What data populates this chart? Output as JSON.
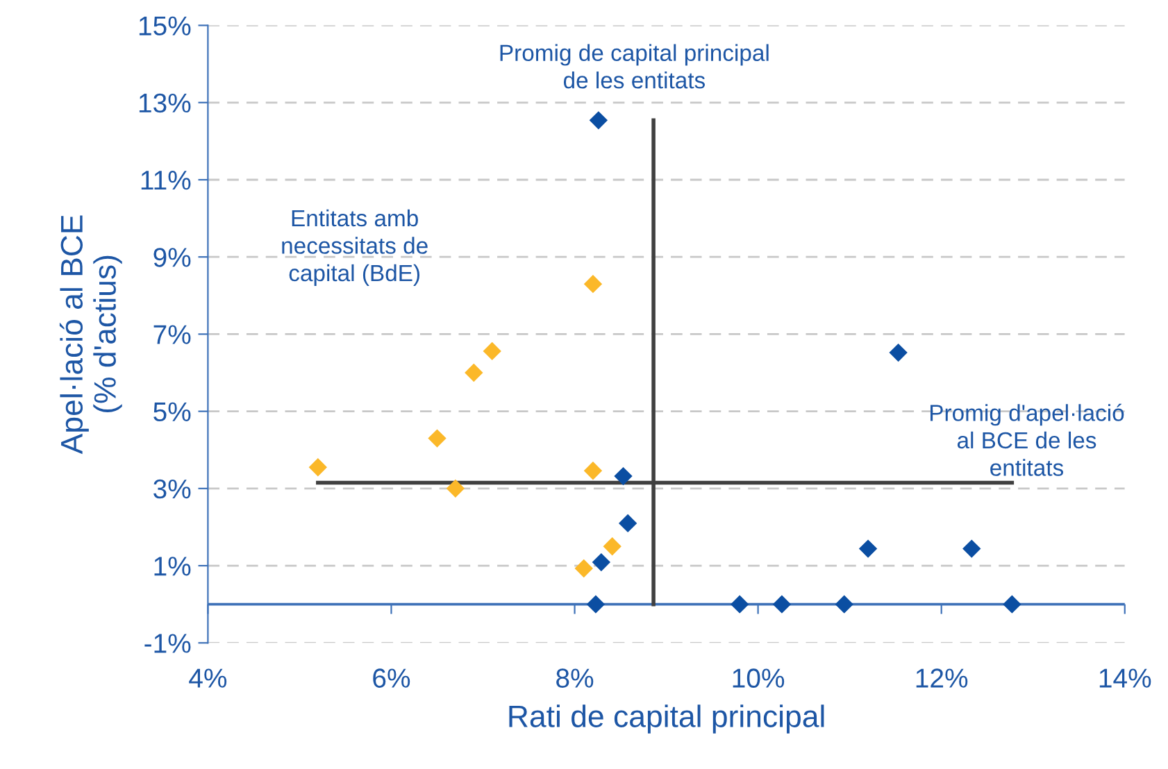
{
  "chart_data": {
    "type": "scatter",
    "xlabel": "Rati de capital principal",
    "ylabel": "Apel·lació al BCE\n(% d'actius)",
    "xlim": [
      4,
      14
    ],
    "xticks": [
      {
        "value": 4,
        "label": "4%"
      },
      {
        "value": 6,
        "label": "6%"
      },
      {
        "value": 8,
        "label": "8%"
      },
      {
        "value": 10,
        "label": "10%"
      },
      {
        "value": 12,
        "label": "12%"
      },
      {
        "value": 14,
        "label": "14%"
      }
    ],
    "ylim": [
      -1,
      15
    ],
    "yticks": [
      {
        "value": -1,
        "label": "-1%"
      },
      {
        "value": 1,
        "label": "1%"
      },
      {
        "value": 3,
        "label": "3%"
      },
      {
        "value": 5,
        "label": "5%"
      },
      {
        "value": 7,
        "label": "7%"
      },
      {
        "value": 9,
        "label": "9%"
      },
      {
        "value": 11,
        "label": "11%"
      },
      {
        "value": 13,
        "label": "13%"
      },
      {
        "value": 15,
        "label": "15%"
      }
    ],
    "grid": "y",
    "series": [
      {
        "color": "#0b4ea2",
        "marker": "diamond",
        "x": [
          8.26,
          11.53,
          8.53,
          8.58,
          8.29,
          8.23,
          9.8,
          10.26,
          10.94,
          12.77,
          11.2,
          12.33
        ],
        "values": [
          12.54,
          6.52,
          3.32,
          2.1,
          1.09,
          0,
          0,
          0,
          0,
          0,
          1.44,
          1.44
        ]
      },
      {
        "color": "#fbb829",
        "marker": "diamond",
        "x": [
          5.2,
          6.5,
          6.7,
          6.9,
          7.1,
          8.2,
          8.2,
          8.41,
          8.1
        ],
        "values": [
          3.55,
          4.3,
          3.0,
          6.0,
          6.56,
          8.3,
          3.46,
          1.5,
          0.93
        ]
      },
      {
        "type": "line",
        "color": "#404040",
        "x": [
          8.86,
          8.86
        ],
        "values": [
          0,
          12.54
        ]
      },
      {
        "type": "line",
        "color": "#404040",
        "x": [
          5.2,
          12.77
        ],
        "values": [
          3.15,
          3.15
        ]
      }
    ],
    "ref_lines": [
      {
        "axis": "y",
        "value": 0,
        "color": "#3f72b8"
      }
    ],
    "annotations": [
      "Promig de capital principal\nde les entitats",
      "Entitats amb\nnecessitats de\ncapital (BdE)",
      "Promig d'apel·lació\nal BCE de les\nentitats"
    ]
  }
}
